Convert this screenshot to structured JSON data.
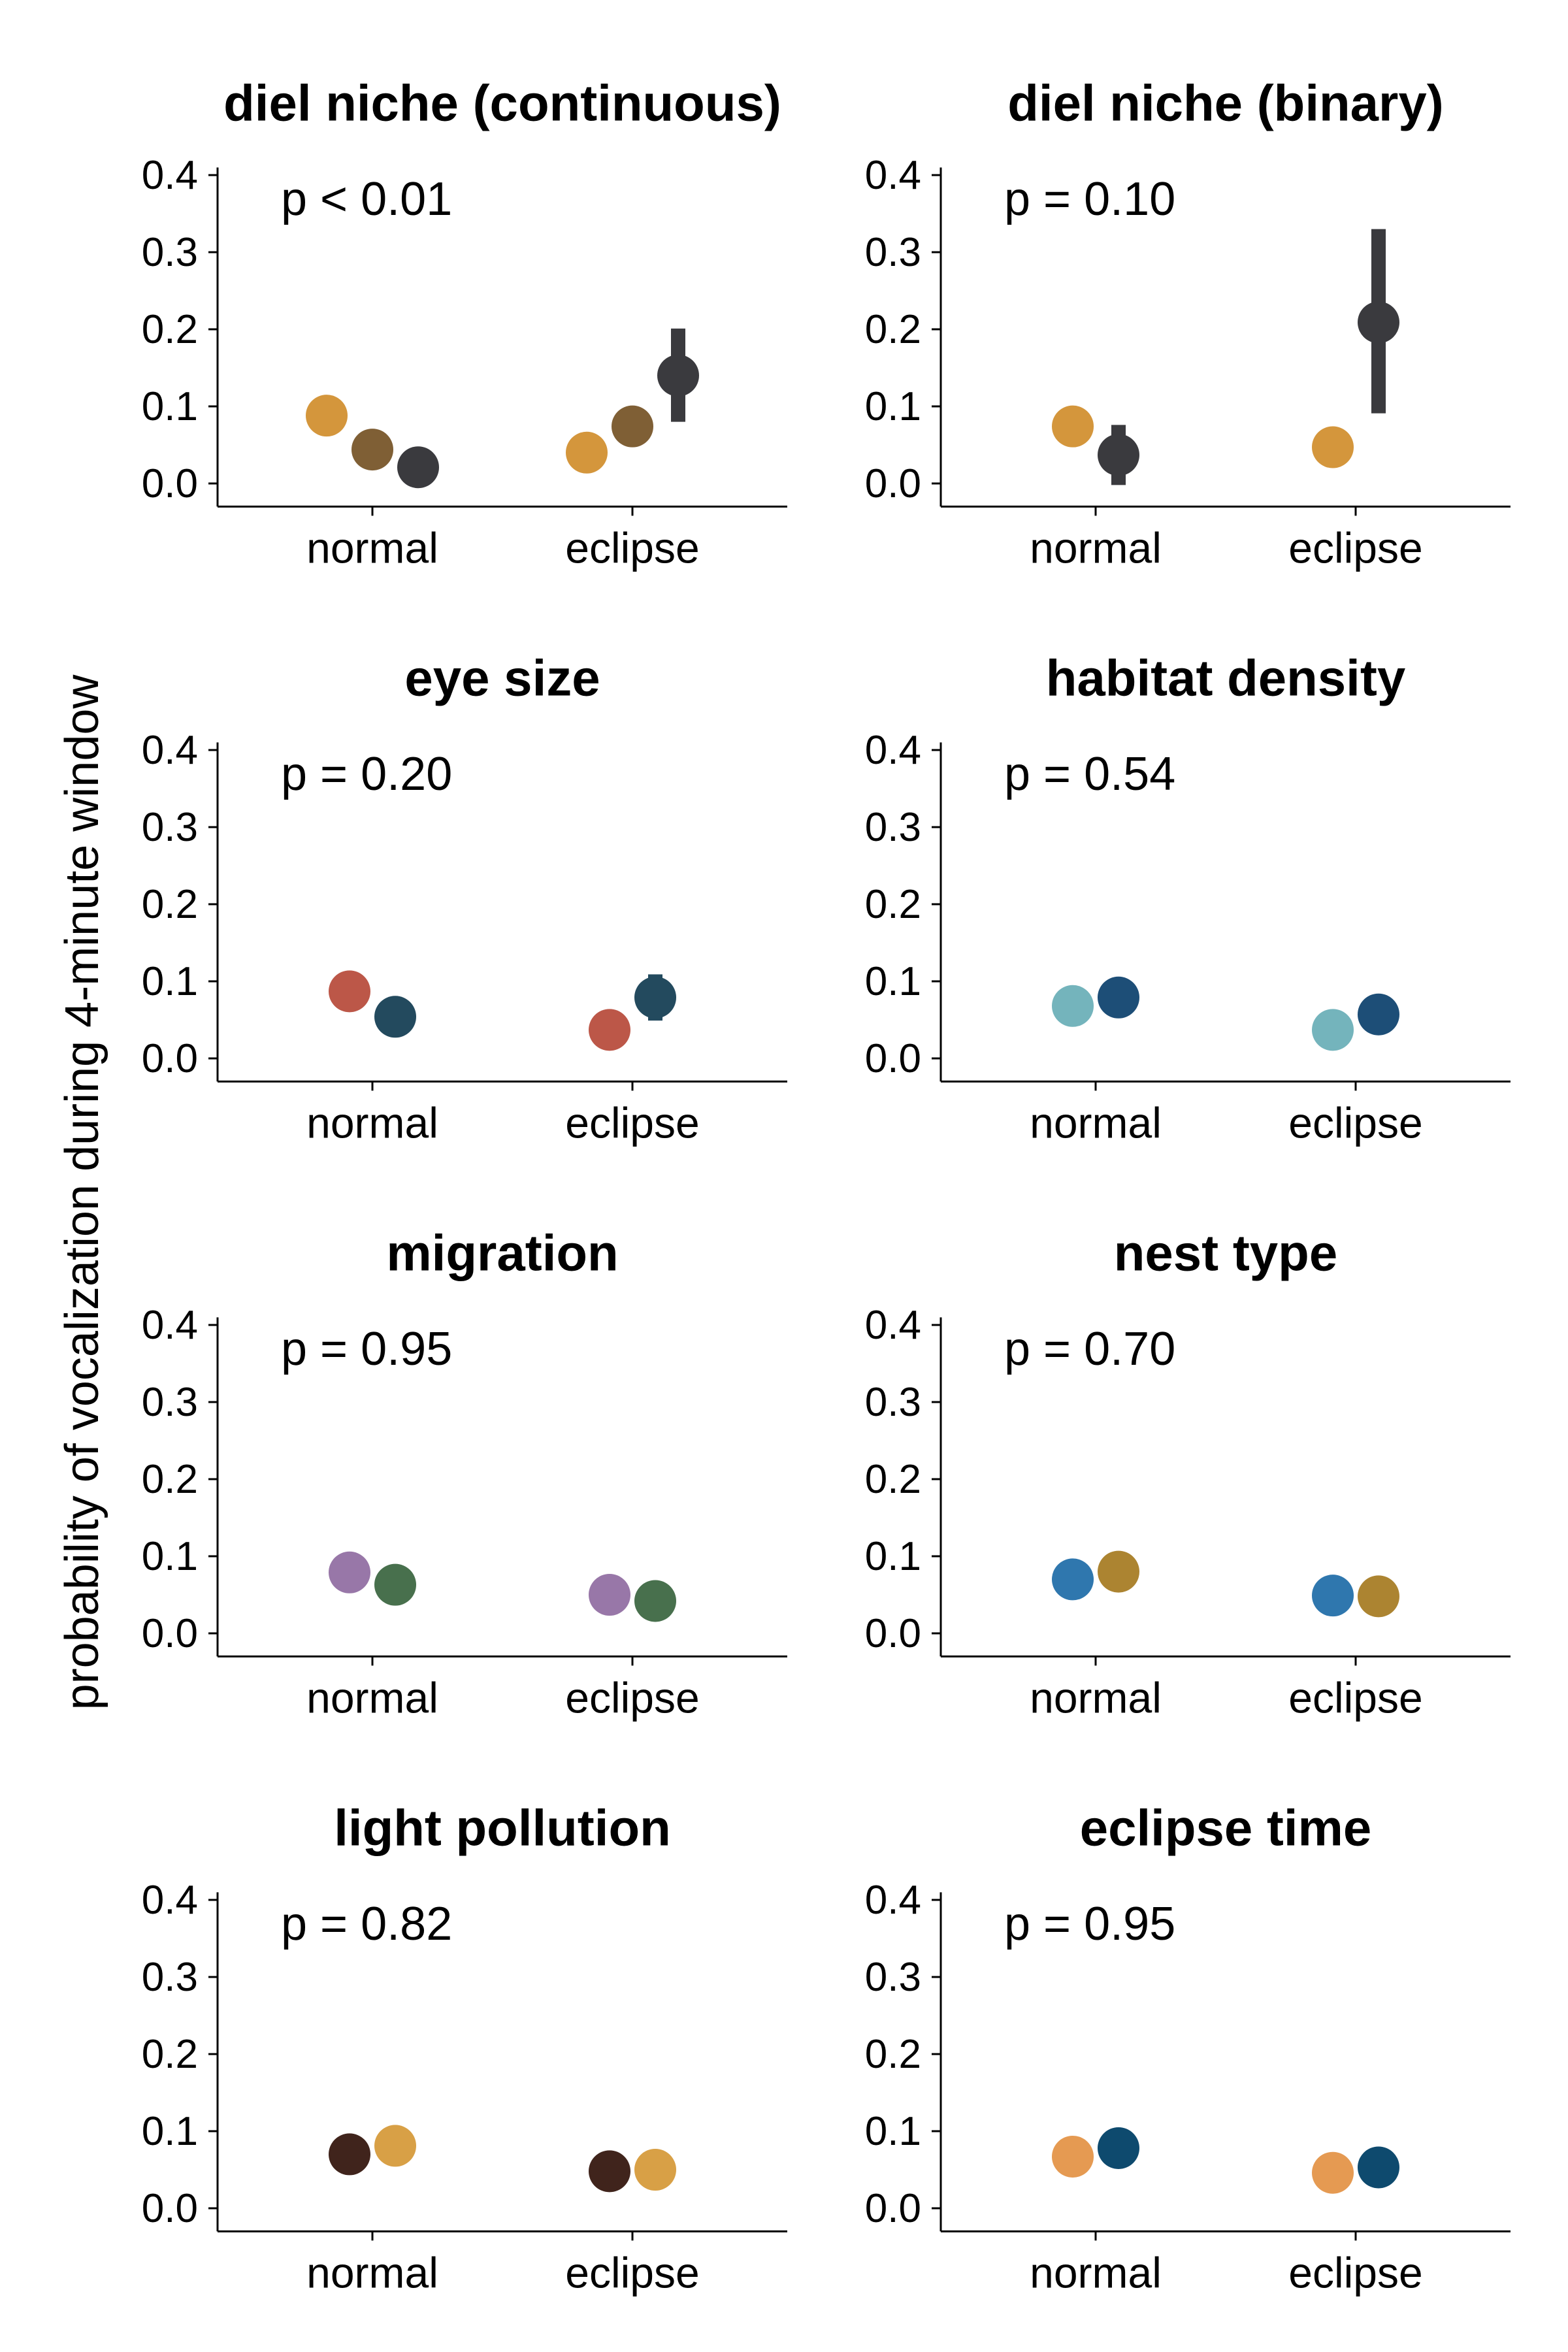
{
  "figure": {
    "ylabel": "probability of vocalization during 4-minute window"
  },
  "chart_data": [
    {
      "type": "scatter",
      "title": "diel niche (continuous)",
      "annotation": "p < 0.01",
      "categories": [
        "normal",
        "eclipse"
      ],
      "yticks": [
        "0.0",
        "0.1",
        "0.2",
        "0.3",
        "0.4"
      ],
      "ylim": [
        -0.03,
        0.42
      ],
      "grid": false,
      "series": [
        {
          "color": "#D4963C",
          "values": [
            0.088,
            0.04
          ],
          "errors": [
            null,
            null
          ]
        },
        {
          "color": "#7F5F35",
          "values": [
            0.044,
            0.074
          ],
          "errors": [
            null,
            null
          ]
        },
        {
          "color": "#3A3A3E",
          "values": [
            0.021,
            0.14
          ],
          "errors": [
            null,
            [
              0.08,
              0.201
            ]
          ]
        }
      ]
    },
    {
      "type": "scatter",
      "title": "diel niche (binary)",
      "annotation": "p = 0.10",
      "categories": [
        "normal",
        "eclipse"
      ],
      "yticks": [
        "0.0",
        "0.1",
        "0.2",
        "0.3",
        "0.4"
      ],
      "ylim": [
        -0.03,
        0.42
      ],
      "grid": false,
      "series": [
        {
          "color": "#D4963C",
          "values": [
            0.074,
            0.047
          ],
          "errors": [
            null,
            null
          ]
        },
        {
          "color": "#3A3A3E",
          "values": [
            0.037,
            0.209
          ],
          "errors": [
            [
              -0.002,
              0.076
            ],
            [
              0.091,
              0.33
            ]
          ]
        }
      ]
    },
    {
      "type": "scatter",
      "title": "eye size",
      "annotation": "p = 0.20",
      "categories": [
        "normal",
        "eclipse"
      ],
      "yticks": [
        "0.0",
        "0.1",
        "0.2",
        "0.3",
        "0.4"
      ],
      "ylim": [
        -0.03,
        0.42
      ],
      "grid": false,
      "series": [
        {
          "color": "#BC5748",
          "values": [
            0.087,
            0.037
          ],
          "errors": [
            null,
            null
          ]
        },
        {
          "color": "#234A5E",
          "values": [
            0.054,
            0.079
          ],
          "errors": [
            null,
            [
              0.049,
              0.109
            ]
          ]
        }
      ]
    },
    {
      "type": "scatter",
      "title": "habitat density",
      "annotation": "p = 0.54",
      "categories": [
        "normal",
        "eclipse"
      ],
      "yticks": [
        "0.0",
        "0.1",
        "0.2",
        "0.3",
        "0.4"
      ],
      "ylim": [
        -0.03,
        0.42
      ],
      "grid": false,
      "series": [
        {
          "color": "#74B4BC",
          "values": [
            0.068,
            0.037
          ],
          "errors": [
            null,
            null
          ]
        },
        {
          "color": "#1D4E77",
          "values": [
            0.079,
            0.057
          ],
          "errors": [
            null,
            null
          ]
        }
      ]
    },
    {
      "type": "scatter",
      "title": "migration",
      "annotation": "p = 0.95",
      "categories": [
        "normal",
        "eclipse"
      ],
      "yticks": [
        "0.0",
        "0.1",
        "0.2",
        "0.3",
        "0.4"
      ],
      "ylim": [
        -0.03,
        0.42
      ],
      "grid": false,
      "series": [
        {
          "color": "#9877A8",
          "values": [
            0.079,
            0.05
          ],
          "errors": [
            null,
            null
          ]
        },
        {
          "color": "#48704D",
          "values": [
            0.063,
            0.042
          ],
          "errors": [
            null,
            null
          ]
        }
      ]
    },
    {
      "type": "scatter",
      "title": "nest type",
      "annotation": "p = 0.70",
      "categories": [
        "normal",
        "eclipse"
      ],
      "yticks": [
        "0.0",
        "0.1",
        "0.2",
        "0.3",
        "0.4"
      ],
      "ylim": [
        -0.03,
        0.42
      ],
      "grid": false,
      "series": [
        {
          "color": "#2F77AE",
          "values": [
            0.07,
            0.049
          ],
          "errors": [
            null,
            null
          ]
        },
        {
          "color": "#AC8431",
          "values": [
            0.08,
            0.048
          ],
          "errors": [
            null,
            null
          ]
        }
      ]
    },
    {
      "type": "scatter",
      "title": "light pollution",
      "annotation": "p = 0.82",
      "categories": [
        "normal",
        "eclipse"
      ],
      "yticks": [
        "0.0",
        "0.1",
        "0.2",
        "0.3",
        "0.4"
      ],
      "ylim": [
        -0.03,
        0.42
      ],
      "grid": false,
      "series": [
        {
          "color": "#40241C",
          "values": [
            0.07,
            0.048
          ],
          "errors": [
            null,
            null
          ]
        },
        {
          "color": "#D8A046",
          "values": [
            0.081,
            0.05
          ],
          "errors": [
            null,
            null
          ]
        }
      ]
    },
    {
      "type": "scatter",
      "title": "eclipse time",
      "annotation": "p = 0.95",
      "categories": [
        "normal",
        "eclipse"
      ],
      "yticks": [
        "0.0",
        "0.1",
        "0.2",
        "0.3",
        "0.4"
      ],
      "ylim": [
        -0.03,
        0.42
      ],
      "grid": false,
      "series": [
        {
          "color": "#E59A52",
          "values": [
            0.067,
            0.046
          ],
          "errors": [
            null,
            null
          ]
        },
        {
          "color": "#0E4A6E",
          "values": [
            0.078,
            0.053
          ],
          "errors": [
            null,
            null
          ]
        }
      ]
    }
  ]
}
